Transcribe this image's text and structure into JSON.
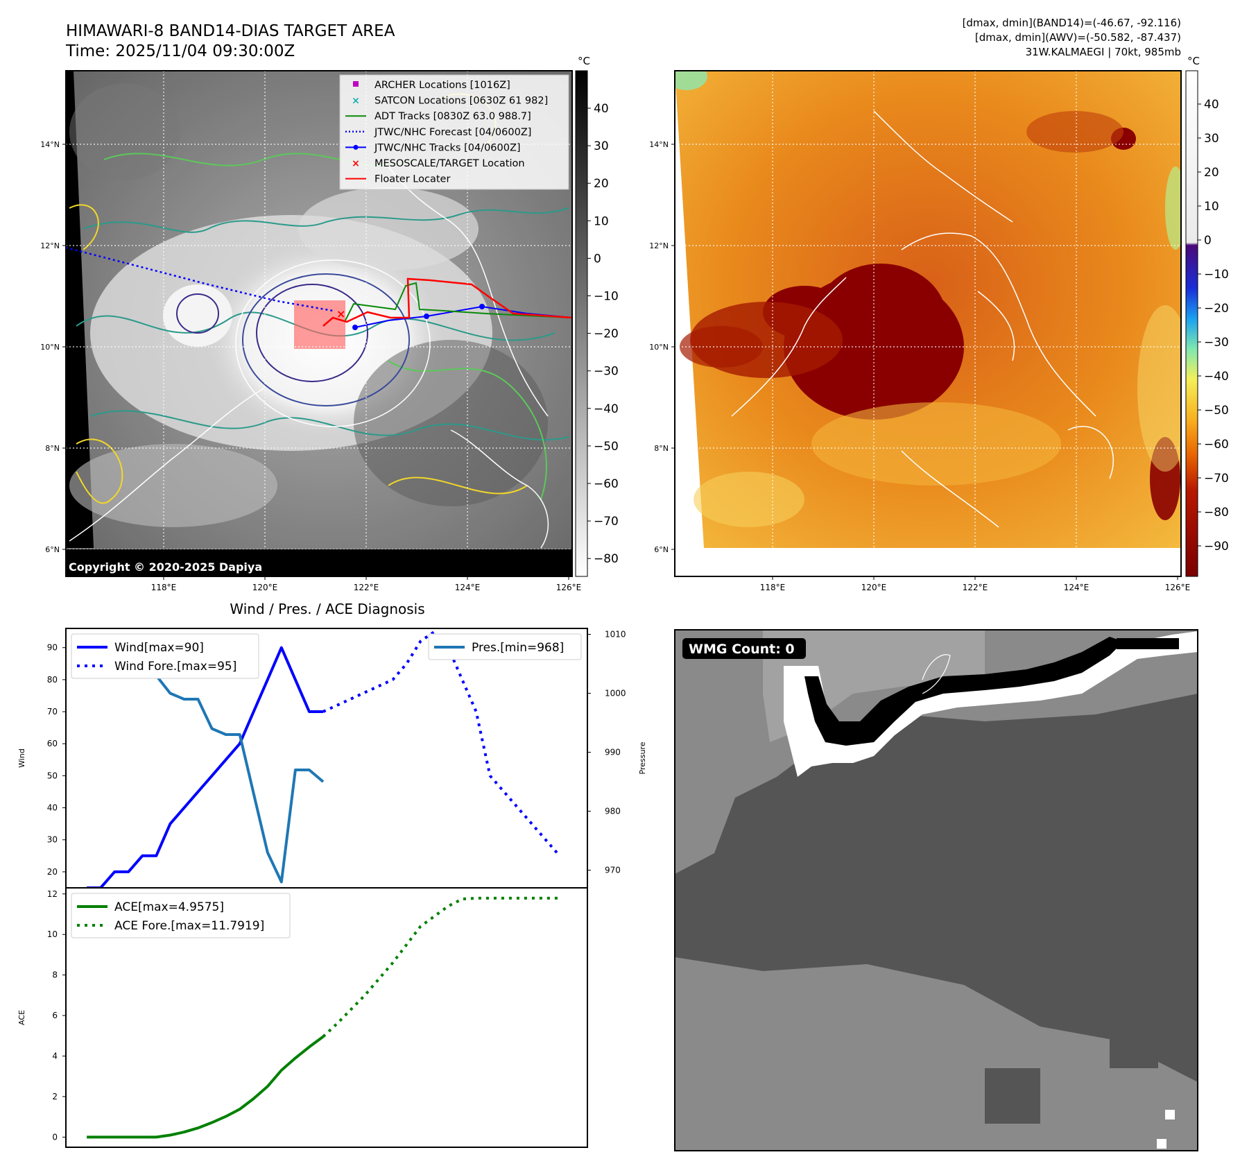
{
  "header": {
    "title_line1": "HIMAWARI-8 BAND14-DIAS TARGET AREA",
    "title_line2": "Time: 2025/11/04 09:30:00Z",
    "info_line1": "[dmax, dmin](BAND14)=(-46.67, -92.116)",
    "info_line2": "[dmax, dmin](AWV)=(-50.582, -87.437)",
    "info_line3": "31W.KALMAEGI | 70kt, 985mb"
  },
  "map_common": {
    "lat_ticks": [
      "14°N",
      "12°N",
      "10°N",
      "8°N",
      "6°N"
    ],
    "lon_ticks": [
      "118°E",
      "120°E",
      "122°E",
      "124°E",
      "126°E"
    ],
    "colorbar_unit": "°C"
  },
  "map1": {
    "copyright": "Copyright © 2020-2025 Dapiya",
    "colorbar_ticks": [
      "40",
      "30",
      "20",
      "10",
      "0",
      "−10",
      "−20",
      "−30",
      "−40",
      "−50",
      "−60",
      "−70",
      "−80"
    ],
    "legend": [
      {
        "label": "ARCHER Locations [1016Z]",
        "color": "#c000c0",
        "kind": "square"
      },
      {
        "label": "SATCON Locations [0630Z 61 982]",
        "color": "#17b0b0",
        "kind": "x"
      },
      {
        "label": "ADT Tracks [0830Z 63.0 988.7]",
        "color": "#0a8a0a",
        "kind": "line"
      },
      {
        "label": "JTWC/NHC Forecast [04/0600Z]",
        "color": "#0000ff",
        "kind": "dotted"
      },
      {
        "label": "JTWC/NHC Tracks [04/0600Z]",
        "color": "#0000ff",
        "kind": "line-dot"
      },
      {
        "label": "MESOSCALE/TARGET Location",
        "color": "#ff0000",
        "kind": "x"
      },
      {
        "label": "Floater Locater",
        "color": "#ff0000",
        "kind": "line"
      }
    ]
  },
  "map2": {
    "colorbar_ticks": [
      "40",
      "30",
      "20",
      "10",
      "0",
      "−10",
      "−20",
      "−30",
      "−40",
      "−50",
      "−60",
      "−70",
      "−80",
      "−90"
    ]
  },
  "diagnosis": {
    "title": "Wind / Pres. / ACE Diagnosis"
  },
  "wmg": {
    "label": "WMG Count: 0"
  },
  "chart_data": [
    {
      "type": "line",
      "title": "Wind / Pres. / ACE Diagnosis",
      "xlabel": "",
      "ylabel": "Wind",
      "y2label": "Pressure",
      "ylim": [
        15,
        96
      ],
      "y2lim": [
        967,
        1011
      ],
      "yticks": [
        20,
        30,
        40,
        50,
        60,
        70,
        80,
        90
      ],
      "y2ticks": [
        970,
        980,
        990,
        1000,
        1010
      ],
      "legend_left": [
        "Wind[max=90]",
        "Wind Fore.[max=95]"
      ],
      "legend_right": [
        "Pres.[min=968]"
      ],
      "series": [
        {
          "name": "Wind[max=90]",
          "axis": "left",
          "style": "solid",
          "color": "#0000ff",
          "x": [
            0,
            1,
            2,
            3,
            4,
            5,
            6,
            7,
            8,
            9,
            10,
            11,
            12,
            13,
            14,
            15,
            16,
            17
          ],
          "y": [
            15,
            15,
            20,
            20,
            25,
            25,
            35,
            40,
            45,
            50,
            55,
            60,
            70,
            80,
            90,
            80,
            70,
            70
          ]
        },
        {
          "name": "Wind Fore.[max=95]",
          "axis": "left",
          "style": "dotted",
          "color": "#0000ff",
          "x": [
            17,
            18,
            19,
            20,
            21,
            22,
            23,
            24,
            25,
            26,
            27,
            28,
            29,
            30,
            31,
            32,
            33,
            34
          ],
          "y": [
            70,
            72,
            74,
            76,
            78,
            80,
            85,
            92,
            95,
            90,
            80,
            70,
            50,
            45,
            40,
            35,
            30,
            25
          ]
        },
        {
          "name": "Pres.[min=968]",
          "axis": "right",
          "style": "solid",
          "color": "#1f77b4",
          "x": [
            0,
            1,
            2,
            3,
            4,
            5,
            6,
            7,
            8,
            9,
            10,
            11,
            12,
            13,
            14,
            15,
            16,
            17
          ],
          "y": [
            1008,
            1007,
            1007,
            1007,
            1006,
            1003,
            1000,
            999,
            999,
            994,
            993,
            993,
            983,
            973,
            968,
            987,
            987,
            985
          ]
        }
      ]
    },
    {
      "type": "line",
      "xlabel": "",
      "ylabel": "ACE",
      "ylim": [
        -0.5,
        12.3
      ],
      "yticks": [
        0,
        2,
        4,
        6,
        8,
        10,
        12
      ],
      "legend": [
        "ACE[max=4.9575]",
        "ACE Fore.[max=11.7919]"
      ],
      "series": [
        {
          "name": "ACE[max=4.9575]",
          "style": "solid",
          "color": "#008000",
          "x": [
            0,
            1,
            2,
            3,
            4,
            5,
            6,
            7,
            8,
            9,
            10,
            11,
            12,
            13,
            14,
            15,
            16,
            17
          ],
          "y": [
            0,
            0,
            0,
            0,
            0,
            0,
            0.1,
            0.25,
            0.45,
            0.72,
            1.02,
            1.38,
            1.9,
            2.5,
            3.3,
            3.9,
            4.45,
            4.9575
          ]
        },
        {
          "name": "ACE Fore.[max=11.7919]",
          "style": "dotted",
          "color": "#008000",
          "x": [
            17,
            18,
            19,
            20,
            21,
            22,
            23,
            24,
            25,
            26,
            27,
            28,
            29,
            30,
            31,
            32,
            33,
            34
          ],
          "y": [
            4.9575,
            5.6,
            6.3,
            7.0,
            7.8,
            8.6,
            9.5,
            10.4,
            10.9,
            11.4,
            11.75,
            11.79,
            11.79,
            11.79,
            11.79,
            11.79,
            11.79,
            11.7919
          ]
        }
      ]
    }
  ]
}
